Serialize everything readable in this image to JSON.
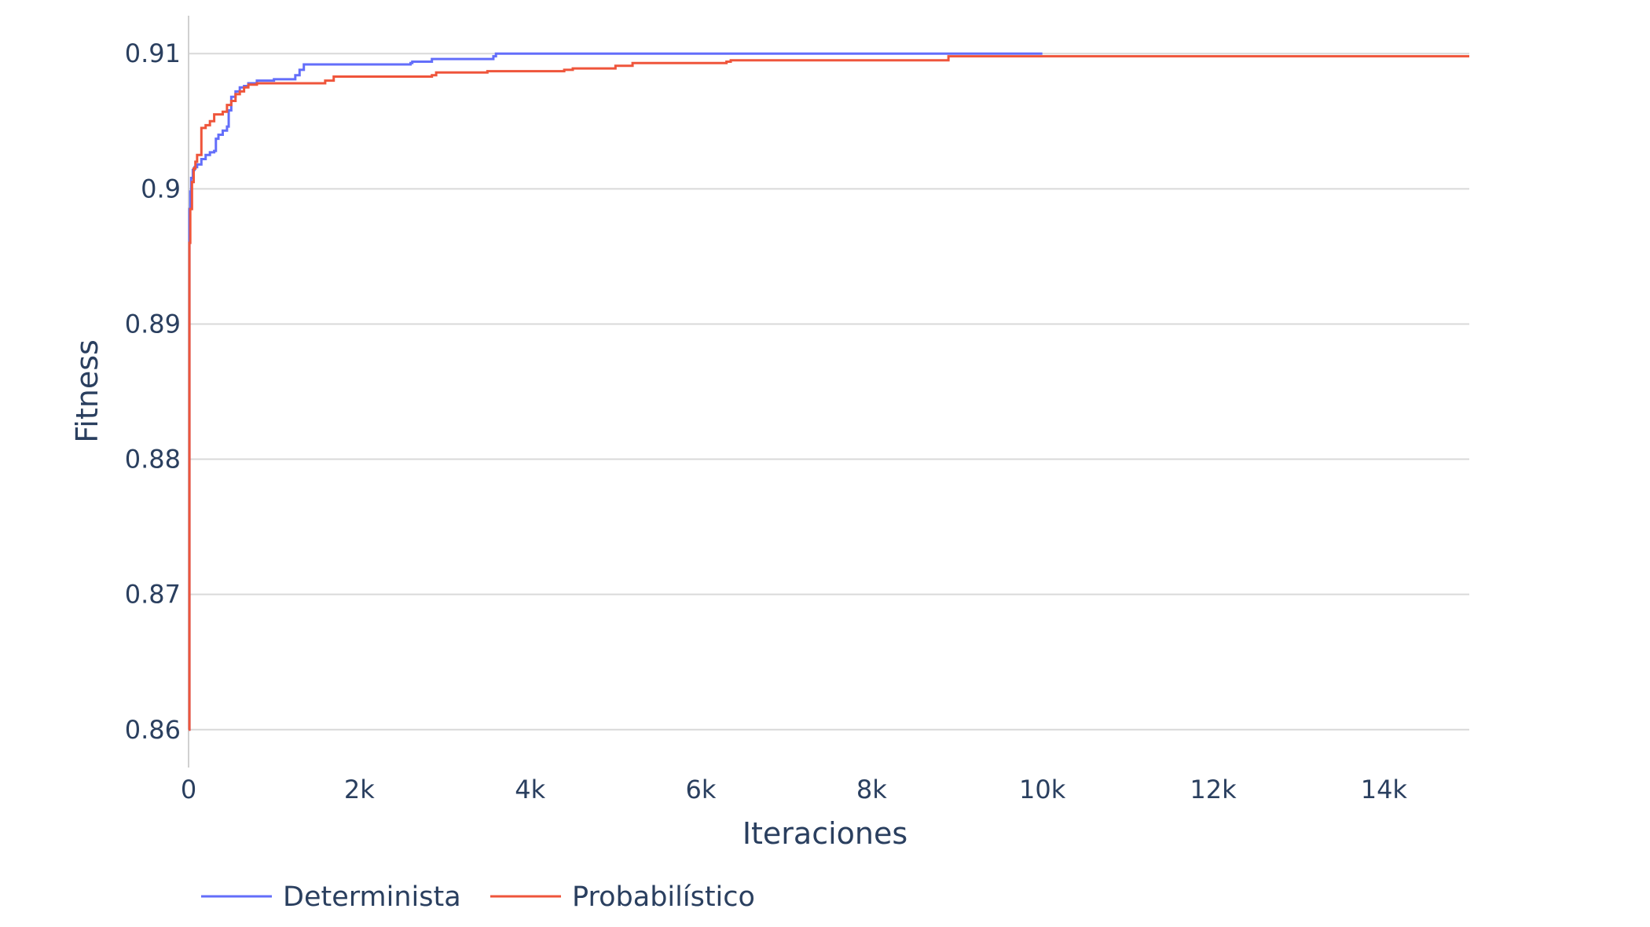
{
  "chart_data": {
    "type": "line",
    "title": "",
    "xlabel": "Iteraciones",
    "ylabel": "Fitness",
    "xlim": [
      0,
      15000
    ],
    "ylim": [
      0.8572,
      0.9128
    ],
    "grid": true,
    "legend_position": "bottom-left",
    "x_ticks": [
      {
        "value": 0,
        "label": "0"
      },
      {
        "value": 2000,
        "label": "2k"
      },
      {
        "value": 4000,
        "label": "4k"
      },
      {
        "value": 6000,
        "label": "6k"
      },
      {
        "value": 8000,
        "label": "8k"
      },
      {
        "value": 10000,
        "label": "10k"
      },
      {
        "value": 12000,
        "label": "12k"
      },
      {
        "value": 14000,
        "label": "14k"
      }
    ],
    "y_ticks": [
      {
        "value": 0.86,
        "label": "0.86"
      },
      {
        "value": 0.87,
        "label": "0.87"
      },
      {
        "value": 0.88,
        "label": "0.88"
      },
      {
        "value": 0.89,
        "label": "0.89"
      },
      {
        "value": 0.9,
        "label": "0.9"
      },
      {
        "value": 0.91,
        "label": "0.91"
      }
    ],
    "series": [
      {
        "name": "Determinista",
        "color": "#636efa",
        "x": [
          0,
          10,
          20,
          30,
          50,
          70,
          100,
          150,
          200,
          250,
          300,
          320,
          350,
          400,
          450,
          470,
          500,
          550,
          600,
          650,
          700,
          800,
          1000,
          1220,
          1250,
          1300,
          1350,
          2000,
          2600,
          2620,
          2850,
          3000,
          3570,
          3600,
          5000,
          8000,
          10000
        ],
        "y": [
          0.86,
          0.8985,
          0.8998,
          0.9008,
          0.9014,
          0.9016,
          0.9018,
          0.9022,
          0.9025,
          0.9027,
          0.9028,
          0.9037,
          0.904,
          0.9043,
          0.9046,
          0.9058,
          0.9068,
          0.9072,
          0.9075,
          0.9076,
          0.9078,
          0.908,
          0.9081,
          0.9081,
          0.9084,
          0.9088,
          0.9092,
          0.9092,
          0.9093,
          0.9094,
          0.9096,
          0.9096,
          0.9098,
          0.91,
          0.91,
          0.91,
          0.91
        ]
      },
      {
        "name": "Probabilístico",
        "color": "#ef553b",
        "x": [
          0,
          10,
          20,
          40,
          60,
          80,
          100,
          150,
          200,
          250,
          300,
          400,
          450,
          500,
          550,
          600,
          650,
          700,
          800,
          1000,
          1550,
          1600,
          1700,
          2000,
          2850,
          2900,
          3500,
          4400,
          4500,
          4950,
          5000,
          5200,
          6300,
          6350,
          8000,
          8850,
          8900,
          10000,
          12000,
          15000
        ],
        "y": [
          0.86,
          0.896,
          0.8985,
          0.9005,
          0.9015,
          0.902,
          0.9025,
          0.9045,
          0.9047,
          0.905,
          0.9055,
          0.9057,
          0.9062,
          0.9065,
          0.907,
          0.9072,
          0.9075,
          0.9077,
          0.9078,
          0.9078,
          0.9078,
          0.908,
          0.9083,
          0.9083,
          0.9084,
          0.9086,
          0.9087,
          0.9088,
          0.9089,
          0.9089,
          0.9091,
          0.9093,
          0.9094,
          0.9095,
          0.9095,
          0.9095,
          0.9098,
          0.9098,
          0.9098,
          0.9098
        ]
      }
    ]
  }
}
